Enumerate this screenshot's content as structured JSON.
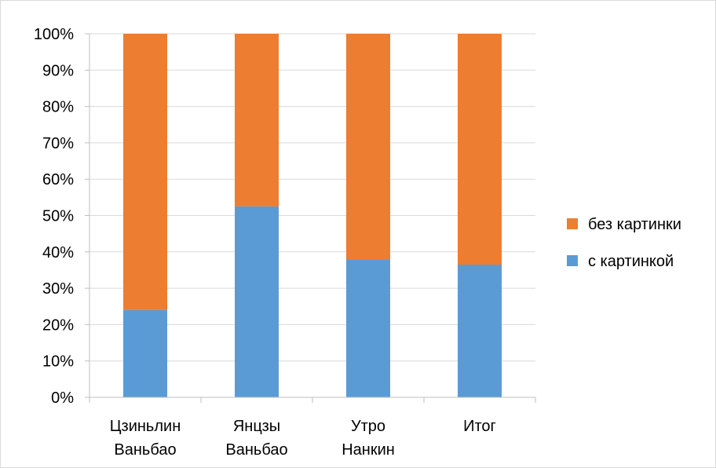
{
  "chart_data": {
    "type": "bar",
    "stacked": true,
    "percent": true,
    "title": "",
    "xlabel": "",
    "ylabel": "",
    "ylim": [
      0,
      100
    ],
    "yticks": [
      "0%",
      "10%",
      "20%",
      "30%",
      "40%",
      "50%",
      "60%",
      "70%",
      "80%",
      "90%",
      "100%"
    ],
    "grid": true,
    "legend_position": "right",
    "categories": [
      [
        "Цзиньлин",
        "Ваньбао"
      ],
      [
        "Янцзы",
        "Ваньбао"
      ],
      [
        "Утро",
        "Нанкин"
      ],
      [
        "Итог"
      ]
    ],
    "series": [
      {
        "name": "с картинкой",
        "color": "#5b9bd5",
        "values": [
          24,
          52.5,
          38,
          36.5
        ]
      },
      {
        "name": "без картинки",
        "color": "#ed7d31",
        "values": [
          76,
          47.5,
          62,
          63.5
        ]
      }
    ],
    "legend": [
      "без картинки",
      "с картинкой"
    ]
  }
}
